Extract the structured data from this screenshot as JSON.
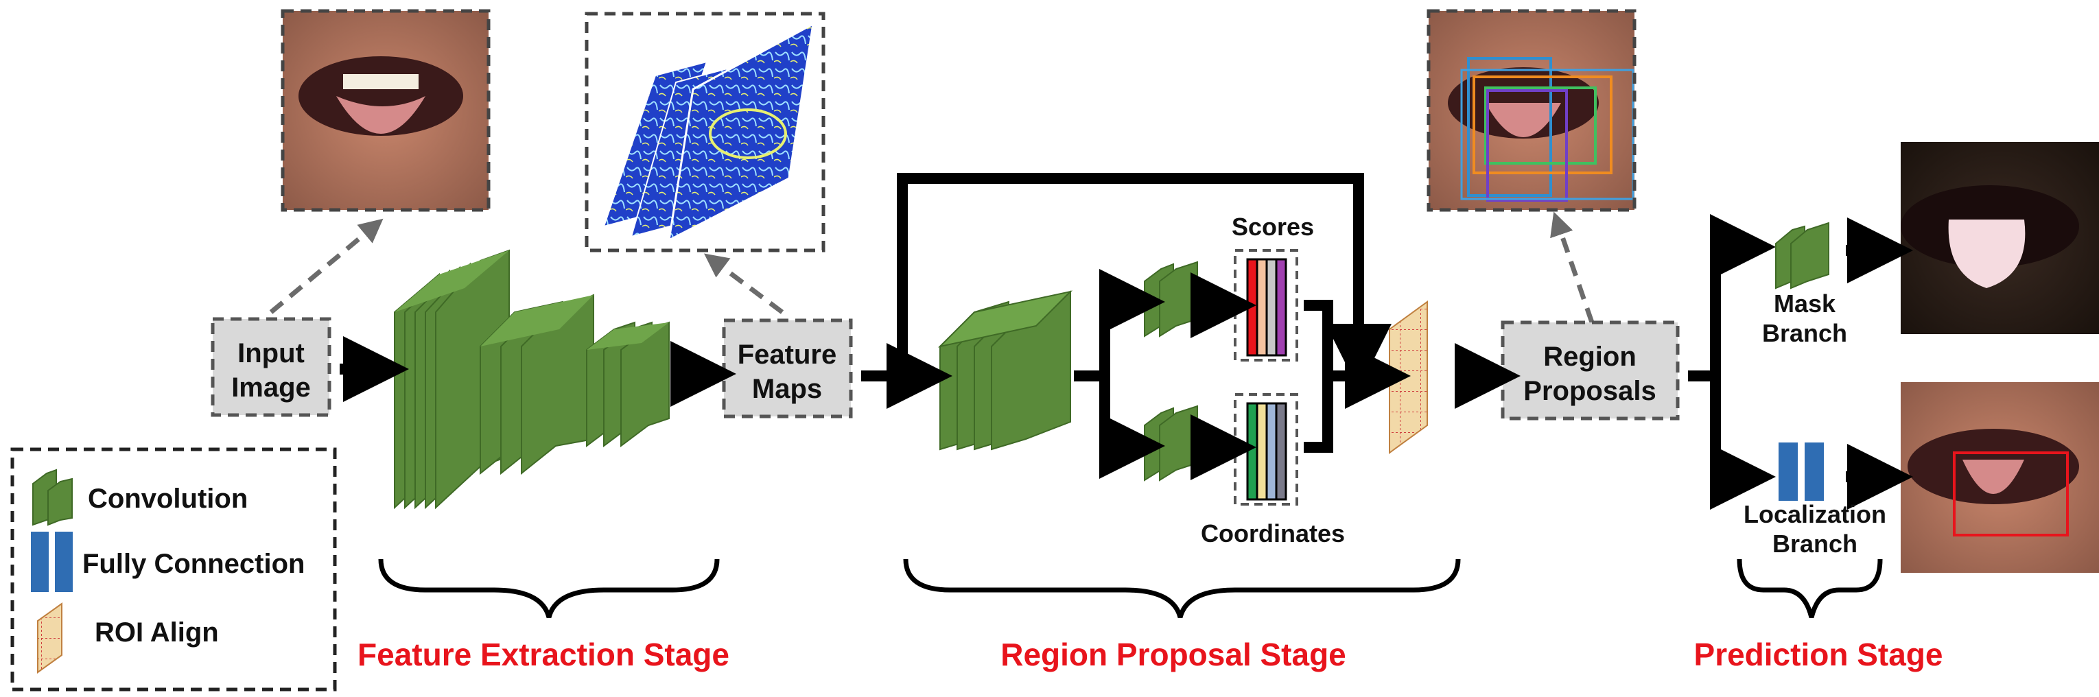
{
  "nodes": {
    "input_image": [
      "Input",
      "Image"
    ],
    "feature_maps": [
      "Feature",
      "Maps"
    ],
    "region_proposals": [
      "Region",
      "Proposals"
    ]
  },
  "rpn_labels": {
    "scores": "Scores",
    "coordinates": "Coordinates"
  },
  "branch_labels": {
    "mask": [
      "Mask",
      "Branch"
    ],
    "localization": [
      "Localization",
      "Branch"
    ]
  },
  "stages": {
    "feature_extraction": "Feature Extraction Stage",
    "region_proposal": "Region Proposal Stage",
    "prediction": "Prediction Stage"
  },
  "legend": {
    "convolution": "Convolution",
    "fully_connection": "Fully Connection",
    "roi_align": "ROI Align"
  },
  "colors": {
    "conv_green": "#5a8a3a",
    "fc_blue": "#2f6db3",
    "stage_red": "#e8141c",
    "box_gray": "#d9d9d9",
    "roi_tan": "#f2d9a8",
    "score_bars": [
      "#e8141c",
      "#f4c2a0",
      "#c8c8c8",
      "#a040b0"
    ],
    "coord_bars": [
      "#20a050",
      "#f2e09a",
      "#9fb6d8",
      "#7a7a8a"
    ]
  }
}
